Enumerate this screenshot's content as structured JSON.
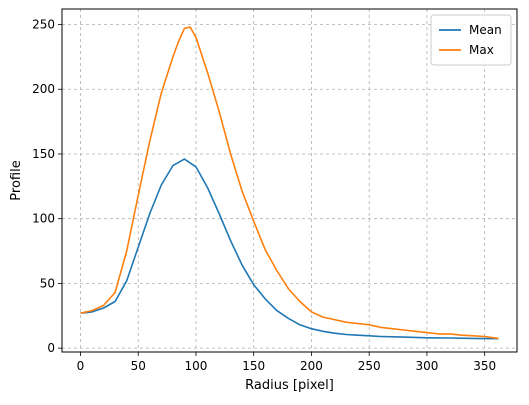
{
  "chart_data": {
    "type": "line",
    "xlabel": "Radius [pixel]",
    "ylabel": "Profile",
    "xlim": [
      -16,
      378
    ],
    "ylim": [
      -3,
      262
    ],
    "xticks": [
      0,
      50,
      100,
      150,
      200,
      250,
      300,
      350
    ],
    "yticks": [
      0,
      50,
      100,
      150,
      200,
      250
    ],
    "grid": true,
    "legend_position": "top-right",
    "series": [
      {
        "name": "Mean",
        "color": "#1f77b4",
        "x": [
          0,
          10,
          20,
          30,
          40,
          50,
          60,
          70,
          80,
          90,
          100,
          110,
          120,
          130,
          140,
          150,
          160,
          170,
          180,
          190,
          200,
          210,
          220,
          230,
          240,
          250,
          260,
          280,
          300,
          320,
          340,
          362
        ],
        "y": [
          27,
          28,
          31,
          36,
          52,
          78,
          104,
          126,
          141,
          146,
          140,
          124,
          104,
          83,
          64,
          49,
          38,
          29,
          23,
          18,
          15,
          13,
          11.5,
          10.5,
          10,
          9.5,
          9,
          8.5,
          8,
          7.8,
          7.5,
          7.3
        ]
      },
      {
        "name": "Max",
        "color": "#ff7f0e",
        "x": [
          0,
          10,
          20,
          30,
          40,
          50,
          60,
          70,
          80,
          85,
          90,
          95,
          100,
          110,
          120,
          130,
          140,
          150,
          160,
          170,
          180,
          190,
          200,
          210,
          220,
          230,
          240,
          250,
          260,
          270,
          280,
          290,
          300,
          310,
          320,
          330,
          340,
          350,
          362
        ],
        "y": [
          27,
          29,
          33,
          43,
          75,
          118,
          160,
          197,
          225,
          237,
          247,
          248,
          240,
          213,
          183,
          150,
          121,
          98,
          76,
          60,
          46,
          36,
          28,
          24,
          22,
          20,
          19,
          18,
          16,
          15,
          14,
          13,
          12,
          11,
          11,
          10,
          9.5,
          9,
          7.5
        ]
      }
    ]
  }
}
